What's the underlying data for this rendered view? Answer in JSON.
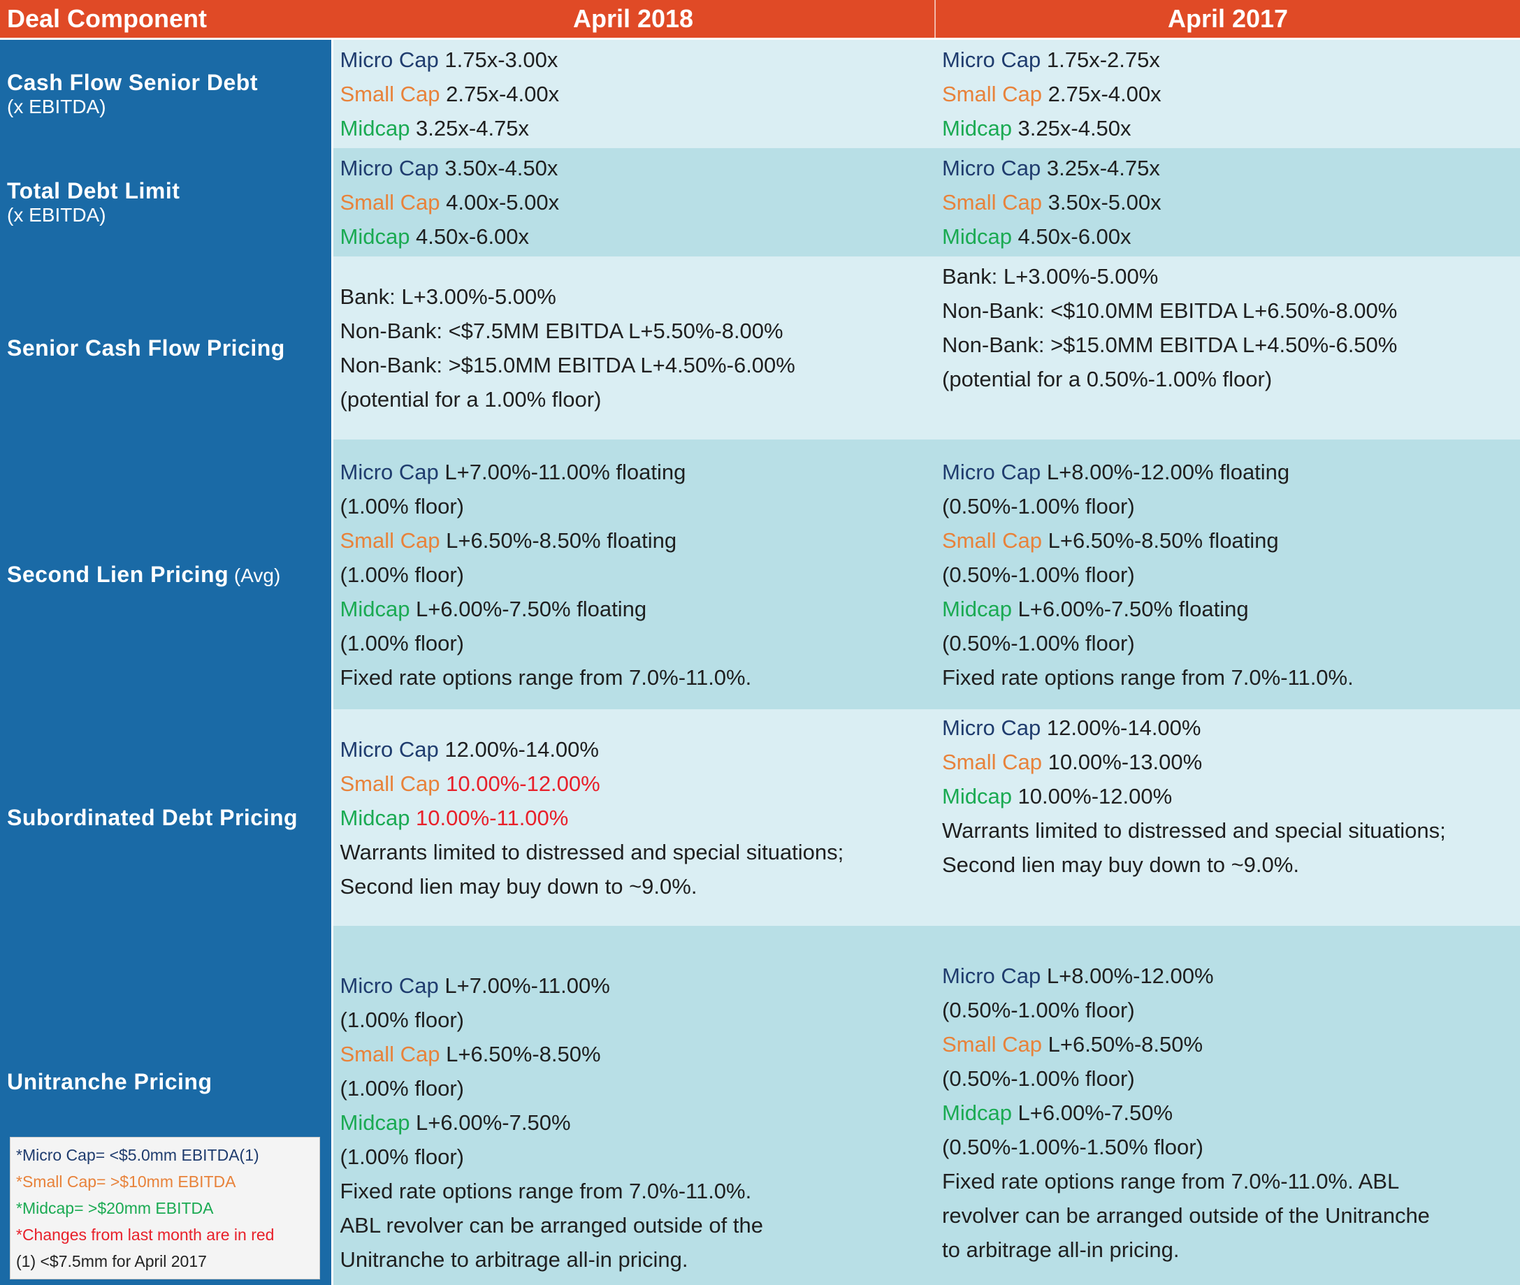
{
  "header": {
    "component": "Deal Component",
    "col1": "April 2018",
    "col2": "April 2017"
  },
  "rows": [
    {
      "label": "Cash Flow Senior Debt",
      "sublabel": "(x EBITDA)",
      "apr2018": [
        {
          "tag": "Micro Cap",
          "text": " 1.75x-3.00x"
        },
        {
          "tag": "Small Cap",
          "text": " 2.75x-4.00x"
        },
        {
          "tag": "Midcap",
          "text": " 3.25x-4.75x"
        }
      ],
      "apr2017": [
        {
          "tag": "Micro Cap",
          "text": " 1.75x-2.75x"
        },
        {
          "tag": "Small Cap",
          "text": " 2.75x-4.00x"
        },
        {
          "tag": "Midcap",
          "text": " 3.25x-4.50x"
        }
      ]
    },
    {
      "label": "Total Debt Limit",
      "sublabel": "(x EBITDA)",
      "apr2018": [
        {
          "tag": "Micro Cap",
          "text": " 3.50x-4.50x"
        },
        {
          "tag": "Small Cap",
          "text": " 4.00x-5.00x"
        },
        {
          "tag": "Midcap",
          "text": " 4.50x-6.00x"
        }
      ],
      "apr2017": [
        {
          "tag": "Micro Cap",
          "text": " 3.25x-4.75x"
        },
        {
          "tag": "Small Cap",
          "text": " 3.50x-5.00x"
        },
        {
          "tag": "Midcap",
          "text": " 4.50x-6.00x"
        }
      ]
    },
    {
      "label": "Senior Cash Flow Pricing",
      "apr2018": [
        "Bank: L+3.00%-5.00%",
        "Non-Bank: <$7.5MM EBITDA L+5.50%-8.00%",
        "Non-Bank: >$15.0MM EBITDA L+4.50%-6.00%",
        "(potential for a 1.00% floor)"
      ],
      "apr2017": [
        "Bank: L+3.00%-5.00%",
        "Non-Bank: <$10.0MM EBITDA L+6.50%-8.00%",
        "Non-Bank: >$15.0MM EBITDA L+4.50%-6.50%",
        "(potential for a 0.50%-1.00% floor)"
      ]
    },
    {
      "label": "Second Lien Pricing",
      "label_suffix": " (Avg)",
      "apr2018": [
        {
          "tag": "Micro Cap",
          "text": " L+7.00%-11.00% floating"
        },
        "(1.00% floor)",
        {
          "tag": "Small Cap",
          "text": " L+6.50%-8.50% floating"
        },
        "(1.00% floor)",
        {
          "tag": "Midcap",
          "text": " L+6.00%-7.50% floating"
        },
        "(1.00% floor)",
        "Fixed rate options range from 7.0%-11.0%."
      ],
      "apr2017": [
        {
          "tag": "Micro Cap",
          "text": " L+8.00%-12.00% floating"
        },
        "(0.50%-1.00% floor)",
        {
          "tag": "Small Cap",
          "text": " L+6.50%-8.50% floating"
        },
        "(0.50%-1.00% floor)",
        {
          "tag": "Midcap",
          "text": " L+6.00%-7.50% floating"
        },
        "(0.50%-1.00% floor)",
        "Fixed rate options range from 7.0%-11.0%."
      ]
    },
    {
      "label": "Subordinated Debt Pricing",
      "apr2018": [
        {
          "tag": "Micro Cap",
          "text": " 12.00%-14.00%"
        },
        {
          "tag": "Small Cap",
          "text": " 10.00%-12.00%",
          "changed": true
        },
        {
          "tag": "Midcap",
          "text": " 10.00%-11.00%",
          "changed": true
        },
        "Warrants limited to distressed and special situations;",
        "Second lien may buy down to ~9.0%."
      ],
      "apr2017": [
        {
          "tag": "Micro Cap",
          "text": " 12.00%-14.00%"
        },
        {
          "tag": "Small Cap",
          "text": " 10.00%-13.00%"
        },
        {
          "tag": "Midcap",
          "text": " 10.00%-12.00%"
        },
        "Warrants limited to distressed and special situations;",
        "Second lien may buy down to ~9.0%."
      ]
    },
    {
      "label": "Unitranche Pricing",
      "apr2018": [
        {
          "tag": "Micro Cap",
          "text": " L+7.00%-11.00%"
        },
        "(1.00% floor)",
        {
          "tag": "Small Cap",
          "text": " L+6.50%-8.50%"
        },
        "(1.00% floor)",
        {
          "tag": "Midcap",
          "text": " L+6.00%-7.50%"
        },
        "(1.00% floor)",
        "Fixed rate options range from 7.0%-11.0%.",
        "ABL revolver can be arranged outside of the",
        "Unitranche to arbitrage all-in pricing."
      ],
      "apr2017": [
        {
          "tag": "Micro Cap",
          "text": " L+8.00%-12.00%"
        },
        "(0.50%-1.00% floor)",
        {
          "tag": "Small Cap",
          "text": " L+6.50%-8.50%"
        },
        "(0.50%-1.00% floor)",
        {
          "tag": "Midcap",
          "text": " L+6.00%-7.50%"
        },
        "(0.50%-1.00%-1.50% floor)",
        "Fixed rate options range from 7.0%-11.0%. ABL",
        "revolver can be arranged outside of the Unitranche",
        "to arbitrage all-in pricing."
      ]
    }
  ],
  "legend": {
    "micro": "*Micro Cap= <$5.0mm EBITDA(1)",
    "small": "*Small Cap= >$10mm EBITDA",
    "mid": "*Midcap= >$20mm EBITDA",
    "changes": "*Changes from last month are in red",
    "note": "(1) <$7.5mm for April 2017"
  },
  "colors": {
    "header_bg": "#e04a26",
    "label_bg": "#1a6aa6",
    "row_light": "#daeef3",
    "row_dark": "#b8dfe6",
    "micro_cap": "#1f3c6e",
    "small_cap": "#e8823a",
    "midcap": "#1aaa52",
    "changed": "#e8202a"
  }
}
